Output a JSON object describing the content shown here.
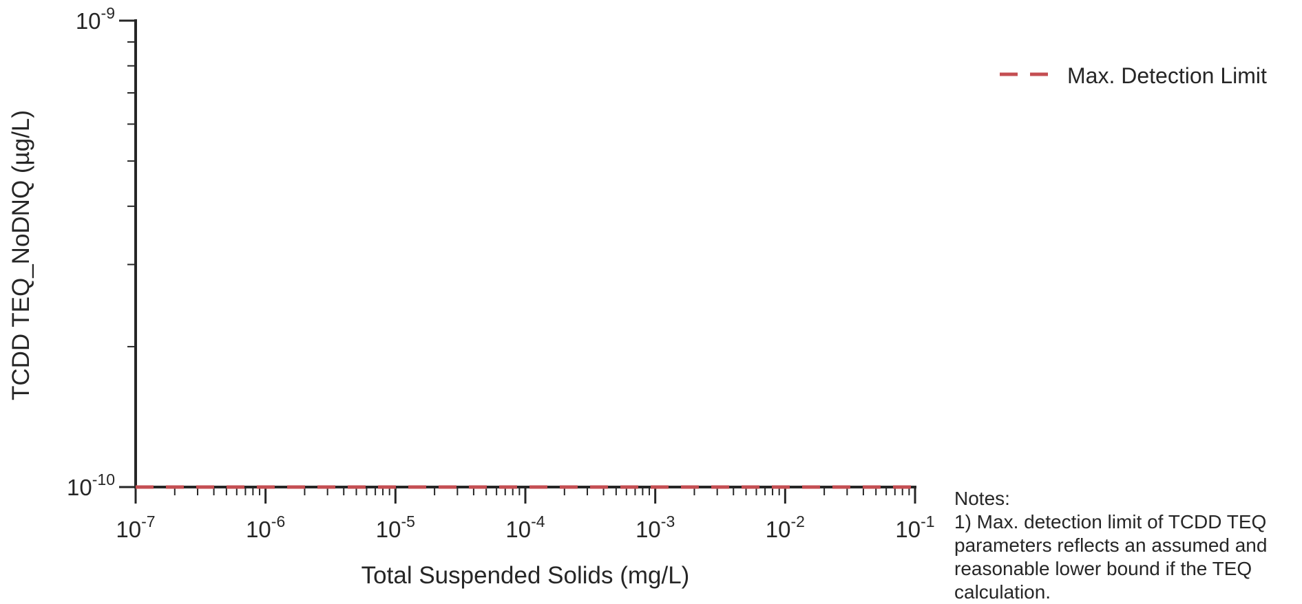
{
  "chart_data": {
    "type": "line",
    "xlabel": "Total Suspended Solids (mg/L)",
    "ylabel": "TCDD TEQ_NoDNQ (µg/L)",
    "xscale": "log",
    "yscale": "log",
    "xlim": [
      1e-07,
      0.1
    ],
    "ylim": [
      1e-10,
      1e-09
    ],
    "x_ticks": [
      {
        "value": 1e-07,
        "base": "10",
        "exp": "-7"
      },
      {
        "value": 1e-06,
        "base": "10",
        "exp": "-6"
      },
      {
        "value": 1e-05,
        "base": "10",
        "exp": "-5"
      },
      {
        "value": 0.0001,
        "base": "10",
        "exp": "-4"
      },
      {
        "value": 0.001,
        "base": "10",
        "exp": "-3"
      },
      {
        "value": 0.01,
        "base": "10",
        "exp": "-2"
      },
      {
        "value": 0.1,
        "base": "10",
        "exp": "-1"
      }
    ],
    "y_ticks": [
      {
        "value": 1e-10,
        "base": "10",
        "exp": "-10"
      },
      {
        "value": 1e-09,
        "base": "10",
        "exp": "-9"
      }
    ],
    "series": [
      {
        "name": "Max. Detection Limit",
        "style": "dashed",
        "color": "#c44e52",
        "x": [
          1e-07,
          0.1
        ],
        "y": [
          1e-10,
          1e-10
        ]
      }
    ],
    "legend": {
      "placement": "top-right"
    },
    "grid": false
  },
  "notes": {
    "lines": [
      "Notes:",
      "1) Max. detection limit of TCDD TEQ",
      "parameters reflects an assumed and",
      "reasonable lower bound if the TEQ",
      "calculation."
    ]
  }
}
